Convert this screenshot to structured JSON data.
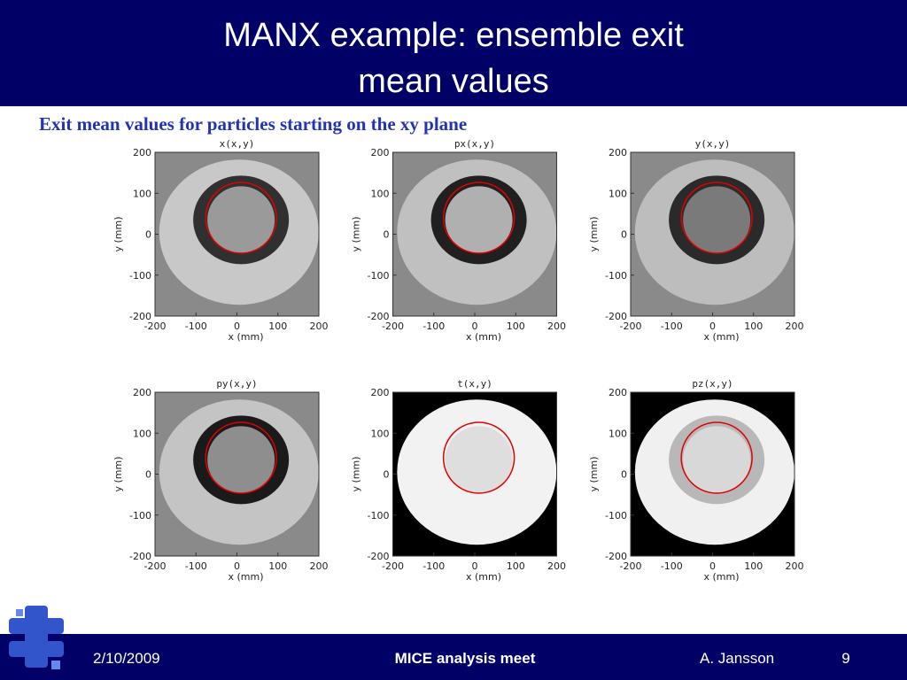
{
  "header": {
    "title_lines": [
      "MANX example: ensemble exit",
      "mean values"
    ]
  },
  "subtitle": "Exit mean values for particles starting on the xy plane",
  "plots": [
    {
      "title": "x(x,y)",
      "xlabel": "x  (mm)",
      "ylabel": "y  (mm)",
      "xticks": [
        -200,
        -100,
        0,
        100,
        200
      ],
      "yticks": [
        -200,
        -100,
        0,
        100,
        200
      ]
    },
    {
      "title": "px(x,y)",
      "xlabel": "x  (mm)",
      "ylabel": "y  (mm)",
      "xticks": [
        -200,
        -100,
        0,
        100,
        200
      ],
      "yticks": [
        -200,
        -100,
        0,
        100,
        200
      ]
    },
    {
      "title": "y(x,y)",
      "xlabel": "x  (mm)",
      "ylabel": "y  (mm)",
      "xticks": [
        -200,
        -100,
        0,
        100,
        200
      ],
      "yticks": [
        -200,
        -100,
        0,
        100,
        200
      ]
    },
    {
      "title": "py(x,y)",
      "xlabel": "x  (mm)",
      "ylabel": "y  (mm)",
      "xticks": [
        -200,
        -100,
        0,
        100,
        200
      ],
      "yticks": [
        -200,
        -100,
        0,
        100,
        200
      ]
    },
    {
      "title": "t(x,y)",
      "xlabel": "x  (mm)",
      "ylabel": "y  (mm)",
      "xticks": [
        -200,
        -100,
        0,
        100,
        200
      ],
      "yticks": [
        -200,
        -100,
        0,
        100,
        200
      ]
    },
    {
      "title": "pz(x,y)",
      "xlabel": "x  (mm)",
      "ylabel": "y  (mm)",
      "xticks": [
        -200,
        -100,
        0,
        100,
        200
      ],
      "yticks": [
        -200,
        -100,
        0,
        100,
        200
      ]
    }
  ],
  "footer": {
    "date": "2/10/2009",
    "meeting": "MICE analysis meet",
    "author": "A. Jansson",
    "page": "9"
  }
}
